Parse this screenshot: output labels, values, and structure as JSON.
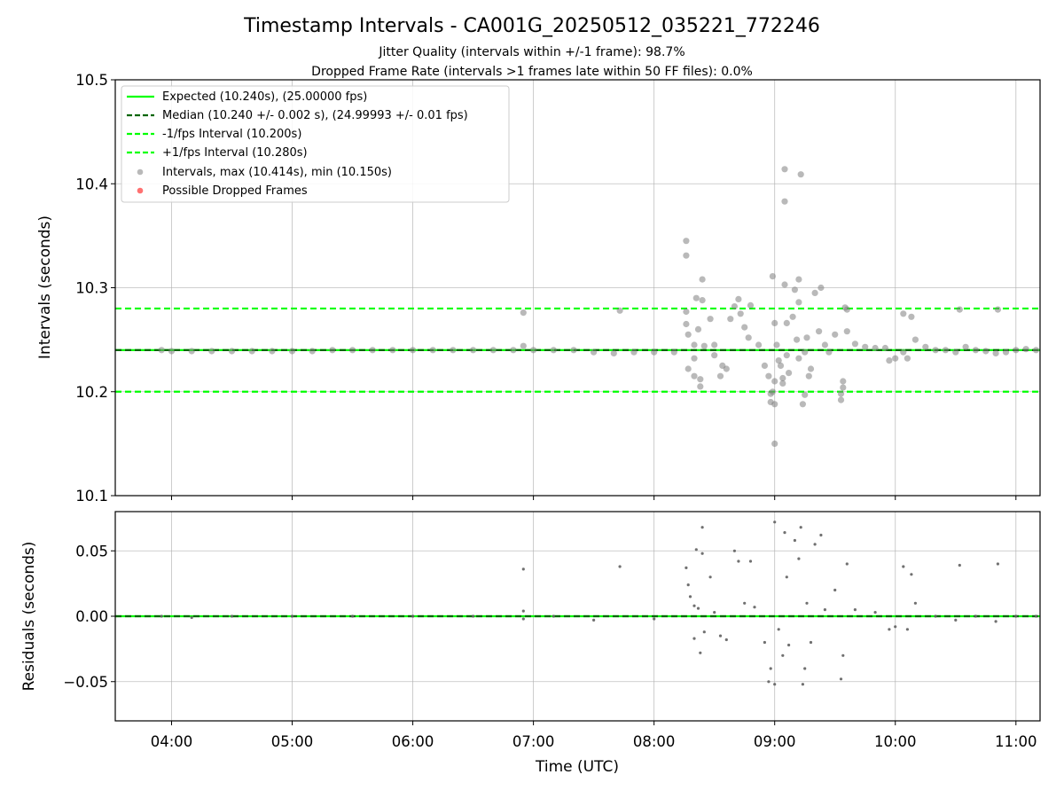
{
  "chart_data": [
    {
      "type": "scatter",
      "title": "Timestamp Intervals - CA001G_20250512_035221_772246",
      "subtitle_lines": [
        "Jitter Quality (intervals within +/-1 frame): 98.7%",
        "Dropped Frame Rate (intervals >1 frames late within 50 FF files): 0.0%"
      ],
      "xlabel": "",
      "ylabel": "Intervals (seconds)",
      "xlim": [
        "03:32",
        "11:12"
      ],
      "ylim": [
        10.1,
        10.5
      ],
      "x_ticks": [
        "04:00",
        "05:00",
        "06:00",
        "07:00",
        "08:00",
        "09:00",
        "10:00",
        "11:00"
      ],
      "y_ticks": [
        "10.1",
        "10.2",
        "10.3",
        "10.4",
        "10.5"
      ],
      "grid": true,
      "legend_position": "top-left",
      "reference_lines": [
        {
          "name": "Expected (10.240s), (25.00000 fps)",
          "y": 10.24,
          "color": "#00ff00",
          "style": "solid"
        },
        {
          "name": "Median (10.240 +/- 0.002 s), (24.99993 +/- 0.01 fps)",
          "y": 10.24,
          "color": "#006400",
          "style": "dashed"
        },
        {
          "name": "-1/fps Interval (10.200s)",
          "y": 10.2,
          "color": "#00ff00",
          "style": "dashed"
        },
        {
          "name": "+1/fps Interval (10.280s)",
          "y": 10.28,
          "color": "#00ff00",
          "style": "dashed"
        }
      ],
      "series": [
        {
          "name": "Intervals, max (10.414s), min (10.150s)",
          "color": "#808080",
          "points": [
            [
              "03:55",
              10.24
            ],
            [
              "04:00",
              10.239
            ],
            [
              "04:10",
              10.239
            ],
            [
              "04:20",
              10.239
            ],
            [
              "04:30",
              10.239
            ],
            [
              "04:40",
              10.239
            ],
            [
              "04:50",
              10.239
            ],
            [
              "05:00",
              10.239
            ],
            [
              "05:10",
              10.239
            ],
            [
              "05:20",
              10.24
            ],
            [
              "05:30",
              10.24
            ],
            [
              "05:40",
              10.24
            ],
            [
              "05:50",
              10.24
            ],
            [
              "06:00",
              10.24
            ],
            [
              "06:10",
              10.24
            ],
            [
              "06:20",
              10.24
            ],
            [
              "06:30",
              10.24
            ],
            [
              "06:40",
              10.24
            ],
            [
              "06:50",
              10.24
            ],
            [
              "06:55",
              10.244
            ],
            [
              "06:55",
              10.276
            ],
            [
              "07:00",
              10.24
            ],
            [
              "07:10",
              10.24
            ],
            [
              "07:20",
              10.24
            ],
            [
              "07:30",
              10.238
            ],
            [
              "07:40",
              10.237
            ],
            [
              "07:43",
              10.278
            ],
            [
              "07:50",
              10.238
            ],
            [
              "08:00",
              10.238
            ],
            [
              "08:10",
              10.238
            ],
            [
              "08:16",
              10.345
            ],
            [
              "08:16",
              10.331
            ],
            [
              "08:16",
              10.277
            ],
            [
              "08:16",
              10.265
            ],
            [
              "08:17",
              10.255
            ],
            [
              "08:17",
              10.222
            ],
            [
              "08:20",
              10.245
            ],
            [
              "08:20",
              10.232
            ],
            [
              "08:20",
              10.215
            ],
            [
              "08:21",
              10.29
            ],
            [
              "08:22",
              10.26
            ],
            [
              "08:23",
              10.205
            ],
            [
              "08:23",
              10.212
            ],
            [
              "08:24",
              10.308
            ],
            [
              "08:24",
              10.288
            ],
            [
              "08:25",
              10.244
            ],
            [
              "08:28",
              10.27
            ],
            [
              "08:30",
              10.245
            ],
            [
              "08:30",
              10.235
            ],
            [
              "08:33",
              10.215
            ],
            [
              "08:34",
              10.225
            ],
            [
              "08:36",
              10.222
            ],
            [
              "08:38",
              10.27
            ],
            [
              "08:40",
              10.282
            ],
            [
              "08:42",
              10.289
            ],
            [
              "08:43",
              10.275
            ],
            [
              "08:45",
              10.262
            ],
            [
              "08:47",
              10.252
            ],
            [
              "08:48",
              10.283
            ],
            [
              "08:52",
              10.245
            ],
            [
              "08:55",
              10.225
            ],
            [
              "08:57",
              10.215
            ],
            [
              "08:58",
              10.198
            ],
            [
              "08:58",
              10.19
            ],
            [
              "08:59",
              10.2
            ],
            [
              "09:00",
              10.21
            ],
            [
              "09:02",
              10.23
            ],
            [
              "08:59",
              10.311
            ],
            [
              "09:00",
              10.188
            ],
            [
              "09:00",
              10.15
            ],
            [
              "09:00",
              10.266
            ],
            [
              "09:01",
              10.245
            ],
            [
              "09:03",
              10.225
            ],
            [
              "09:04",
              10.213
            ],
            [
              "09:04",
              10.208
            ],
            [
              "09:05",
              10.383
            ],
            [
              "09:05",
              10.414
            ],
            [
              "09:05",
              10.303
            ],
            [
              "09:06",
              10.266
            ],
            [
              "09:06",
              10.235
            ],
            [
              "09:07",
              10.218
            ],
            [
              "09:09",
              10.272
            ],
            [
              "09:10",
              10.298
            ],
            [
              "09:11",
              10.25
            ],
            [
              "09:12",
              10.232
            ],
            [
              "09:12",
              10.308
            ],
            [
              "09:12",
              10.286
            ],
            [
              "09:13",
              10.409
            ],
            [
              "09:14",
              10.188
            ],
            [
              "09:15",
              10.197
            ],
            [
              "09:15",
              10.238
            ],
            [
              "09:16",
              10.252
            ],
            [
              "09:17",
              10.215
            ],
            [
              "09:18",
              10.222
            ],
            [
              "09:20",
              10.295
            ],
            [
              "09:22",
              10.258
            ],
            [
              "09:23",
              10.3
            ],
            [
              "09:25",
              10.245
            ],
            [
              "09:27",
              10.238
            ],
            [
              "09:30",
              10.255
            ],
            [
              "09:33",
              10.192
            ],
            [
              "09:33",
              10.198
            ],
            [
              "09:34",
              10.204
            ],
            [
              "09:34",
              10.21
            ],
            [
              "09:35",
              10.281
            ],
            [
              "09:36",
              10.279
            ],
            [
              "09:36",
              10.258
            ],
            [
              "09:40",
              10.246
            ],
            [
              "09:45",
              10.243
            ],
            [
              "09:50",
              10.242
            ],
            [
              "09:55",
              10.242
            ],
            [
              "09:57",
              10.23
            ],
            [
              "10:00",
              10.232
            ],
            [
              "10:04",
              10.238
            ],
            [
              "10:04",
              10.275
            ],
            [
              "10:06",
              10.232
            ],
            [
              "10:08",
              10.272
            ],
            [
              "10:10",
              10.25
            ],
            [
              "10:15",
              10.243
            ],
            [
              "10:20",
              10.24
            ],
            [
              "10:25",
              10.24
            ],
            [
              "10:30",
              10.238
            ],
            [
              "10:32",
              10.279
            ],
            [
              "10:35",
              10.243
            ],
            [
              "10:40",
              10.24
            ],
            [
              "10:45",
              10.239
            ],
            [
              "10:50",
              10.237
            ],
            [
              "10:51",
              10.279
            ],
            [
              "10:55",
              10.238
            ],
            [
              "11:00",
              10.24
            ],
            [
              "11:05",
              10.241
            ],
            [
              "11:10",
              10.24
            ]
          ]
        },
        {
          "name": "Possible Dropped Frames",
          "color": "#ff4d4d",
          "points": []
        }
      ]
    },
    {
      "type": "scatter",
      "title": "",
      "xlabel": "Time (UTC)",
      "ylabel": "Residuals (seconds)",
      "xlim": [
        "03:32",
        "11:12"
      ],
      "ylim": [
        -0.08,
        0.08
      ],
      "x_ticks": [
        "04:00",
        "05:00",
        "06:00",
        "07:00",
        "08:00",
        "09:00",
        "10:00",
        "11:00"
      ],
      "y_ticks": [
        "−0.05",
        "0.00",
        "0.05"
      ],
      "grid": true,
      "reference_lines": [
        {
          "y": 0.0,
          "color": "#00ff00",
          "style": "solid"
        },
        {
          "y": 0.0,
          "color": "#006400",
          "style": "dashed"
        }
      ],
      "series": [
        {
          "name": "",
          "color": "#606060",
          "points": [
            [
              "03:55",
              0.0
            ],
            [
              "04:10",
              -0.001
            ],
            [
              "04:30",
              0.0
            ],
            [
              "05:00",
              0.0
            ],
            [
              "05:30",
              0.0
            ],
            [
              "06:00",
              0.0
            ],
            [
              "06:30",
              0.0
            ],
            [
              "06:55",
              0.036
            ],
            [
              "06:55",
              0.004
            ],
            [
              "06:55",
              -0.002
            ],
            [
              "07:10",
              0.0
            ],
            [
              "07:30",
              -0.003
            ],
            [
              "07:43",
              0.038
            ],
            [
              "08:00",
              -0.002
            ],
            [
              "08:16",
              0.037
            ],
            [
              "08:17",
              0.024
            ],
            [
              "08:18",
              0.015
            ],
            [
              "08:20",
              0.008
            ],
            [
              "08:20",
              -0.017
            ],
            [
              "08:21",
              0.051
            ],
            [
              "08:22",
              0.006
            ],
            [
              "08:23",
              -0.028
            ],
            [
              "08:24",
              0.068
            ],
            [
              "08:24",
              0.048
            ],
            [
              "08:25",
              -0.012
            ],
            [
              "08:28",
              0.03
            ],
            [
              "08:30",
              0.003
            ],
            [
              "08:33",
              -0.015
            ],
            [
              "08:36",
              -0.018
            ],
            [
              "08:40",
              0.05
            ],
            [
              "08:42",
              0.042
            ],
            [
              "08:45",
              0.01
            ],
            [
              "08:48",
              0.042
            ],
            [
              "08:50",
              0.007
            ],
            [
              "08:55",
              -0.02
            ],
            [
              "08:57",
              -0.05
            ],
            [
              "08:58",
              -0.04
            ],
            [
              "09:00",
              0.072
            ],
            [
              "09:00",
              -0.052
            ],
            [
              "09:02",
              -0.01
            ],
            [
              "09:04",
              -0.03
            ],
            [
              "09:05",
              0.064
            ],
            [
              "09:06",
              0.03
            ],
            [
              "09:07",
              -0.022
            ],
            [
              "09:10",
              0.058
            ],
            [
              "09:12",
              0.044
            ],
            [
              "09:13",
              0.068
            ],
            [
              "09:14",
              -0.052
            ],
            [
              "09:15",
              -0.04
            ],
            [
              "09:16",
              0.01
            ],
            [
              "09:18",
              -0.02
            ],
            [
              "09:20",
              0.055
            ],
            [
              "09:23",
              0.062
            ],
            [
              "09:25",
              0.005
            ],
            [
              "09:30",
              0.02
            ],
            [
              "09:33",
              -0.048
            ],
            [
              "09:34",
              -0.03
            ],
            [
              "09:36",
              0.04
            ],
            [
              "09:40",
              0.005
            ],
            [
              "09:50",
              0.003
            ],
            [
              "09:57",
              -0.01
            ],
            [
              "10:00",
              -0.008
            ],
            [
              "10:04",
              0.038
            ],
            [
              "10:06",
              -0.01
            ],
            [
              "10:08",
              0.032
            ],
            [
              "10:10",
              0.01
            ],
            [
              "10:20",
              0.0
            ],
            [
              "10:30",
              -0.003
            ],
            [
              "10:32",
              0.039
            ],
            [
              "10:40",
              0.0
            ],
            [
              "10:50",
              -0.004
            ],
            [
              "10:51",
              0.04
            ],
            [
              "11:00",
              0.0
            ],
            [
              "11:10",
              0.0
            ]
          ]
        }
      ]
    }
  ]
}
